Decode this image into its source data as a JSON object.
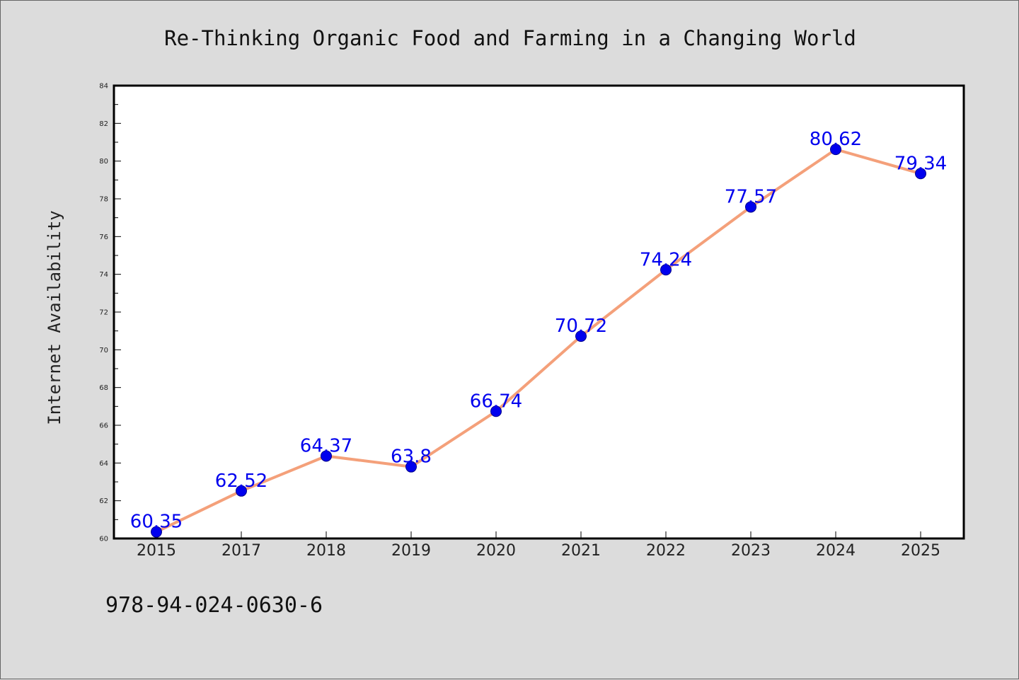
{
  "chart_data": {
    "type": "line",
    "title": "Re-Thinking Organic Food and Farming in a Changing World",
    "xlabel": "",
    "ylabel": "Internet Availability",
    "categories": [
      "2015",
      "2017",
      "2018",
      "2019",
      "2020",
      "2021",
      "2022",
      "2023",
      "2024",
      "2025"
    ],
    "series": [
      {
        "values": [
          60.35,
          62.52,
          64.37,
          63.8,
          66.74,
          70.72,
          74.24,
          77.57,
          80.62,
          79.34
        ],
        "labels": [
          "60.35",
          "62.52",
          "64.37",
          "63.8",
          "66.74",
          "70.72",
          "74.24",
          "77.57",
          "80.62",
          "79.34"
        ],
        "line_color": "#f4a07a",
        "marker_color": "#0000ee"
      }
    ],
    "ylim": [
      60,
      84
    ],
    "yticks": [
      "60",
      "62",
      "64",
      "66",
      "68",
      "70",
      "72",
      "74",
      "76",
      "78",
      "80",
      "82",
      "84"
    ],
    "grid": false,
    "legend": "none"
  },
  "footnote": "978-94-024-0630-6",
  "colors": {
    "background": "#dcdcdc",
    "plot_background": "#ffffff",
    "axis": "#000000"
  }
}
